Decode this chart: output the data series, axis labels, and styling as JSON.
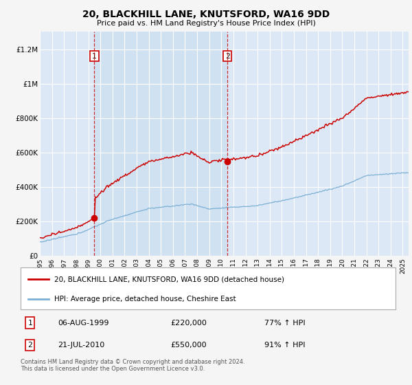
{
  "title": "20, BLACKHILL LANE, KNUTSFORD, WA16 9DD",
  "subtitle": "Price paid vs. HM Land Registry's House Price Index (HPI)",
  "hpi_label": "HPI: Average price, detached house, Cheshire East",
  "property_label": "20, BLACKHILL LANE, KNUTSFORD, WA16 9DD (detached house)",
  "footer": "Contains HM Land Registry data © Crown copyright and database right 2024.\nThis data is licensed under the Open Government Licence v3.0.",
  "sale1_date": "06-AUG-1999",
  "sale1_price": 220000,
  "sale1_hpi": "77% ↑ HPI",
  "sale2_date": "21-JUL-2010",
  "sale2_price": 550000,
  "sale2_hpi": "91% ↑ HPI",
  "yticks": [
    0,
    200000,
    400000,
    600000,
    800000,
    1000000,
    1200000
  ],
  "ytick_labels": [
    "£0",
    "£200K",
    "£400K",
    "£600K",
    "£800K",
    "£1M",
    "£1.2M"
  ],
  "property_color": "#cc0000",
  "hpi_color": "#7bafd4",
  "fig_bg_color": "#f5f5f5",
  "plot_bg_color": "#dce8f5",
  "highlight_bg_color": "#cde0f0",
  "grid_color": "#ffffff",
  "dashed_line_color": "#cc0000"
}
